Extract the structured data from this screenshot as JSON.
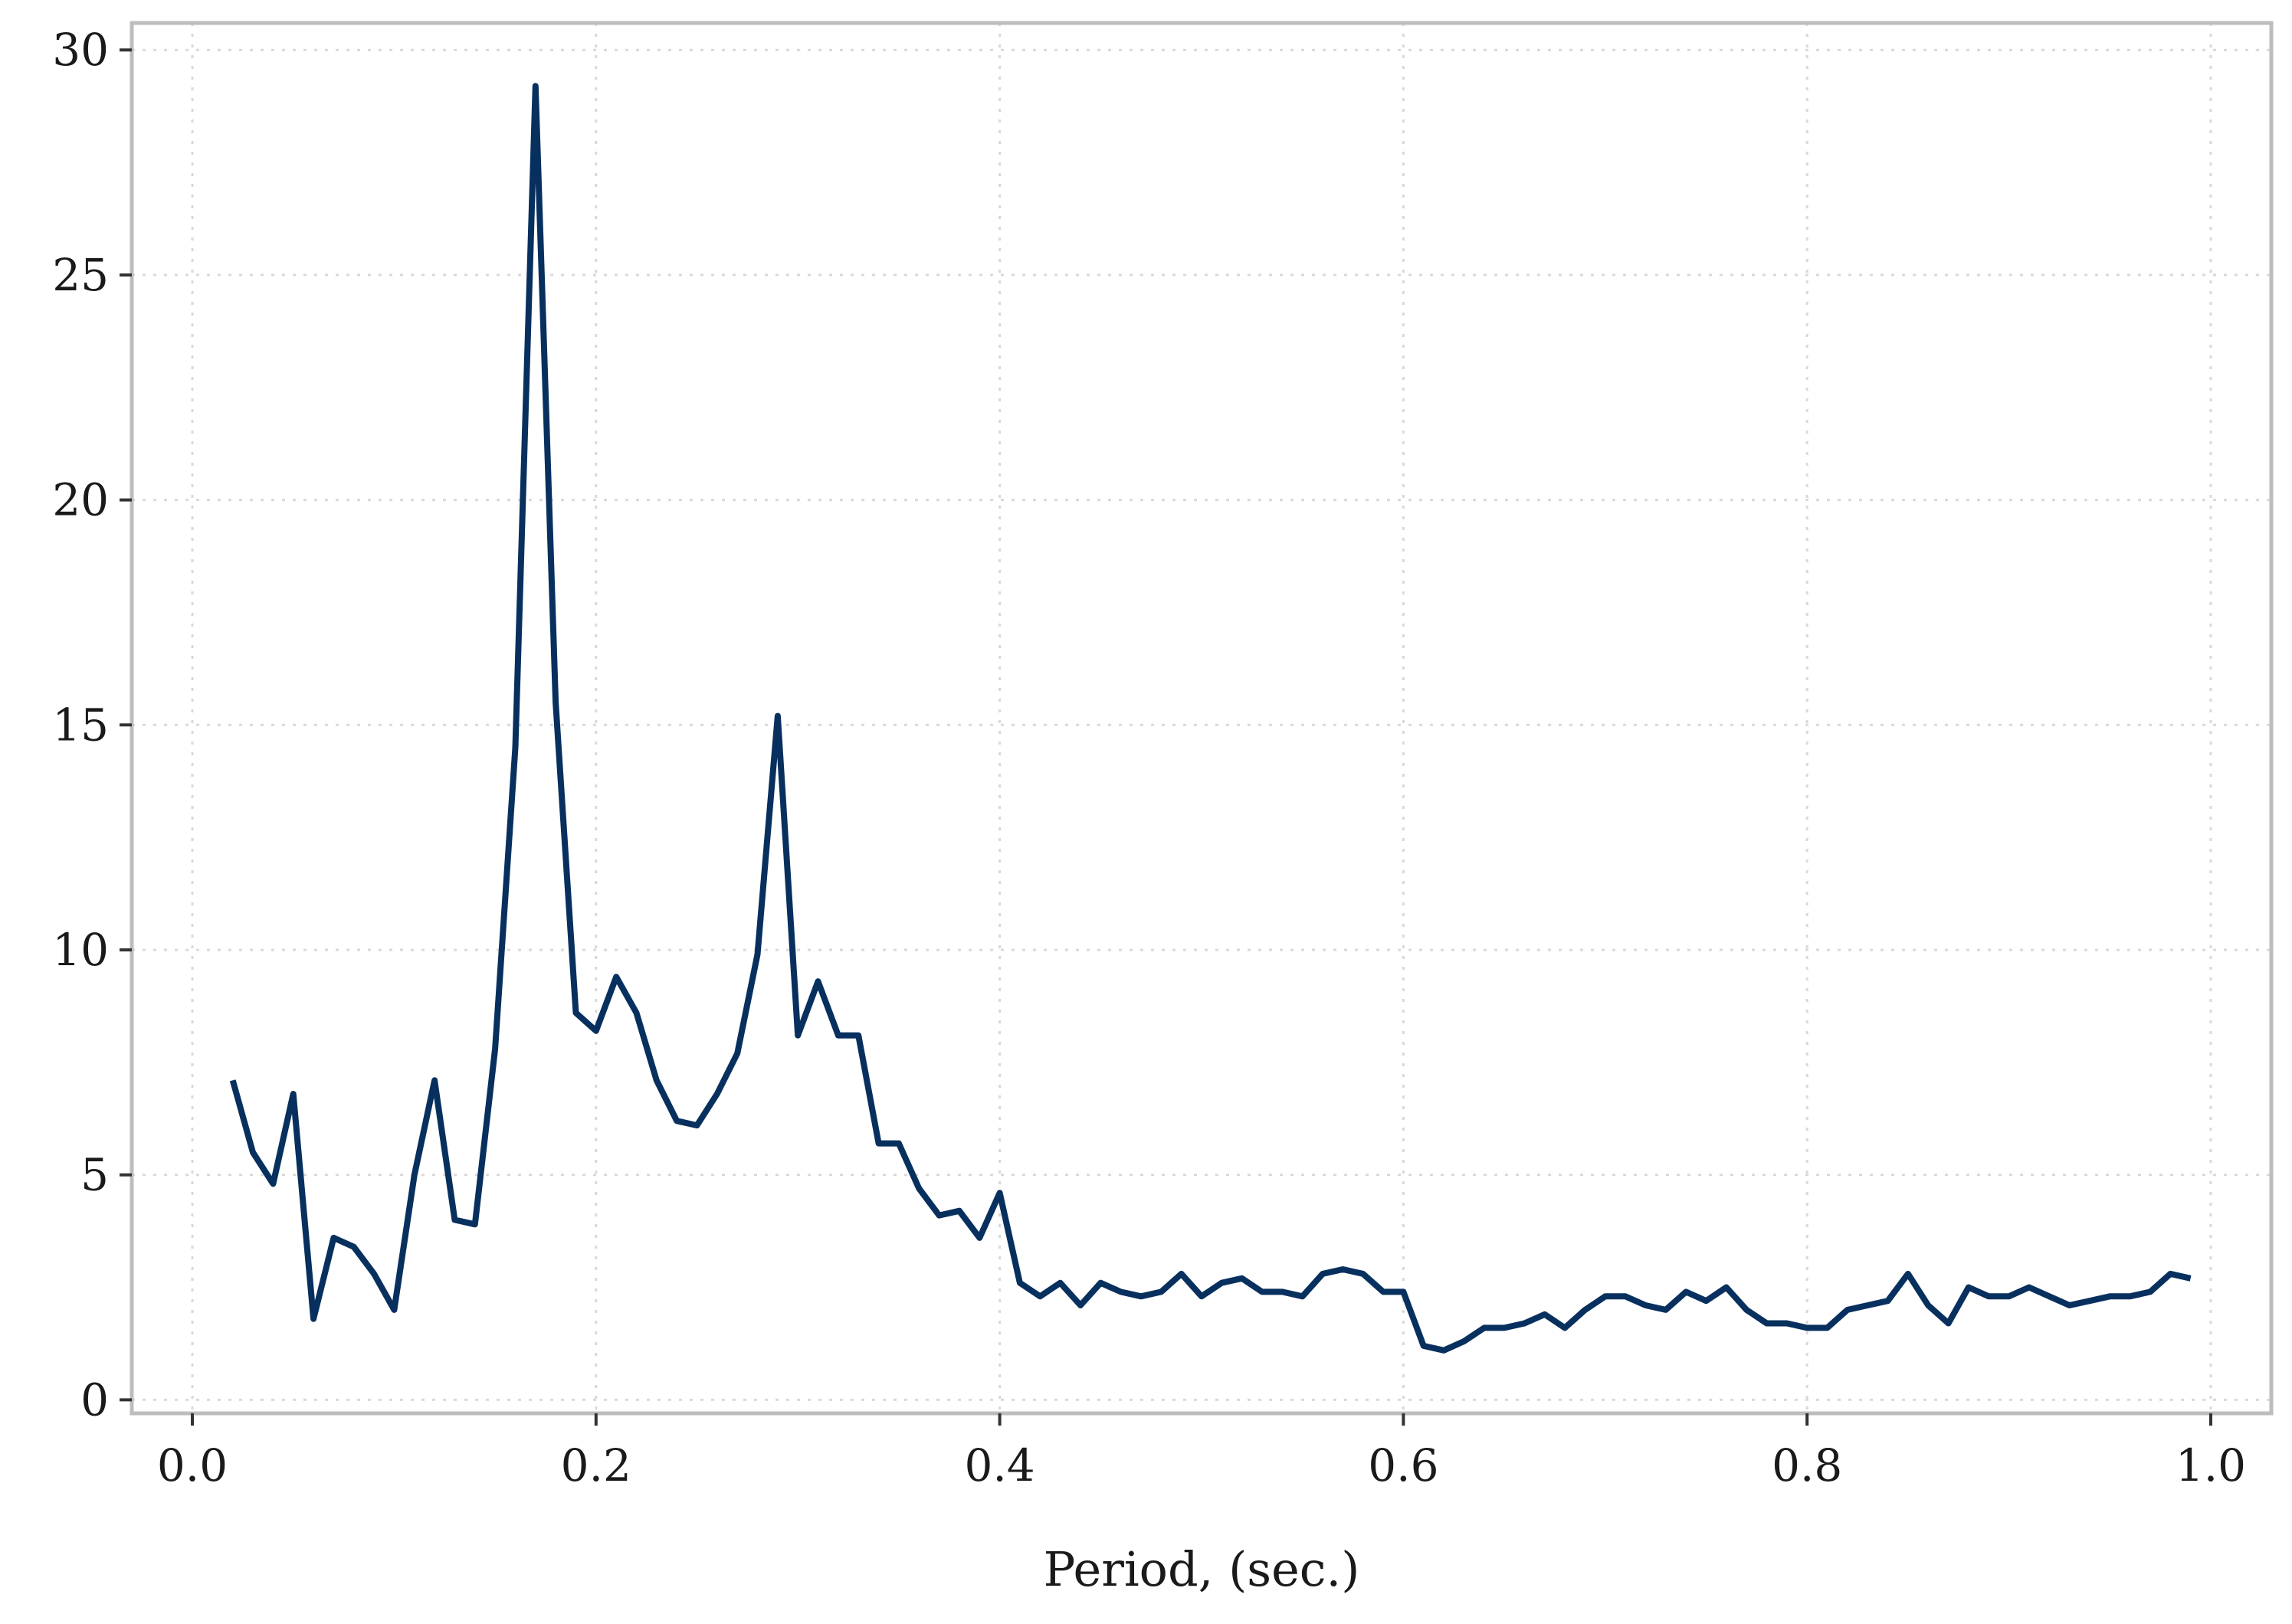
{
  "chart_data": {
    "type": "line",
    "title": "",
    "xlabel": "Period, (sec.)",
    "ylabel": "",
    "xlim": [
      -0.03,
      1.03
    ],
    "ylim": [
      -0.3,
      30.6
    ],
    "xticks": [
      0.0,
      0.2,
      0.4,
      0.6,
      0.8,
      1.0
    ],
    "xtick_labels": [
      "0.0",
      "0.2",
      "0.4",
      "0.6",
      "0.8",
      "1.0"
    ],
    "yticks": [
      0,
      5,
      10,
      15,
      20,
      25,
      30
    ],
    "ytick_labels": [
      "0",
      "5",
      "10",
      "15",
      "20",
      "25",
      "30"
    ],
    "grid": true,
    "line_color": "#08305e",
    "series": [
      {
        "x": [
          0.02,
          0.03,
          0.04,
          0.05,
          0.06,
          0.07,
          0.08,
          0.09,
          0.1,
          0.11,
          0.12,
          0.13,
          0.14,
          0.15,
          0.16,
          0.17,
          0.18,
          0.19,
          0.2,
          0.21,
          0.22,
          0.23,
          0.24,
          0.25,
          0.26,
          0.27,
          0.28,
          0.29,
          0.3,
          0.31,
          0.32,
          0.33,
          0.34,
          0.35,
          0.36,
          0.37,
          0.38,
          0.39,
          0.4,
          0.41,
          0.42,
          0.43,
          0.44,
          0.45,
          0.46,
          0.47,
          0.48,
          0.49,
          0.5,
          0.51,
          0.52,
          0.53,
          0.54,
          0.55,
          0.56,
          0.57,
          0.58,
          0.59,
          0.6,
          0.61,
          0.62,
          0.63,
          0.64,
          0.65,
          0.66,
          0.67,
          0.68,
          0.69,
          0.7,
          0.71,
          0.72,
          0.73,
          0.74,
          0.75,
          0.76,
          0.77,
          0.78,
          0.79,
          0.8,
          0.81,
          0.82,
          0.83,
          0.84,
          0.85,
          0.86,
          0.87,
          0.88,
          0.89,
          0.9,
          0.91,
          0.92,
          0.93,
          0.94,
          0.95,
          0.96,
          0.97,
          0.98,
          0.99
        ],
        "y": [
          7.1,
          5.5,
          4.8,
          6.8,
          1.8,
          3.6,
          3.4,
          2.8,
          2.0,
          5.0,
          7.1,
          4.0,
          3.9,
          7.8,
          14.5,
          29.2,
          15.5,
          8.6,
          8.2,
          9.4,
          8.6,
          7.1,
          6.2,
          6.1,
          6.8,
          7.7,
          9.9,
          15.2,
          8.1,
          9.3,
          8.1,
          8.1,
          5.7,
          5.7,
          4.7,
          4.1,
          4.2,
          3.6,
          4.6,
          2.6,
          2.3,
          2.6,
          2.1,
          2.6,
          2.4,
          2.3,
          2.4,
          2.8,
          2.3,
          2.6,
          2.7,
          2.4,
          2.4,
          2.3,
          2.8,
          2.9,
          2.8,
          2.4,
          2.4,
          1.2,
          1.1,
          1.3,
          1.6,
          1.6,
          1.7,
          1.9,
          1.6,
          2.0,
          2.3,
          2.3,
          2.1,
          2.0,
          2.4,
          2.2,
          2.5,
          2.0,
          1.7,
          1.7,
          1.6,
          1.6,
          2.0,
          2.1,
          2.2,
          2.8,
          2.1,
          1.7,
          2.5,
          2.3,
          2.3,
          2.5,
          2.3,
          2.1,
          2.2,
          2.3,
          2.3,
          2.4,
          2.8,
          2.7
        ]
      }
    ]
  }
}
